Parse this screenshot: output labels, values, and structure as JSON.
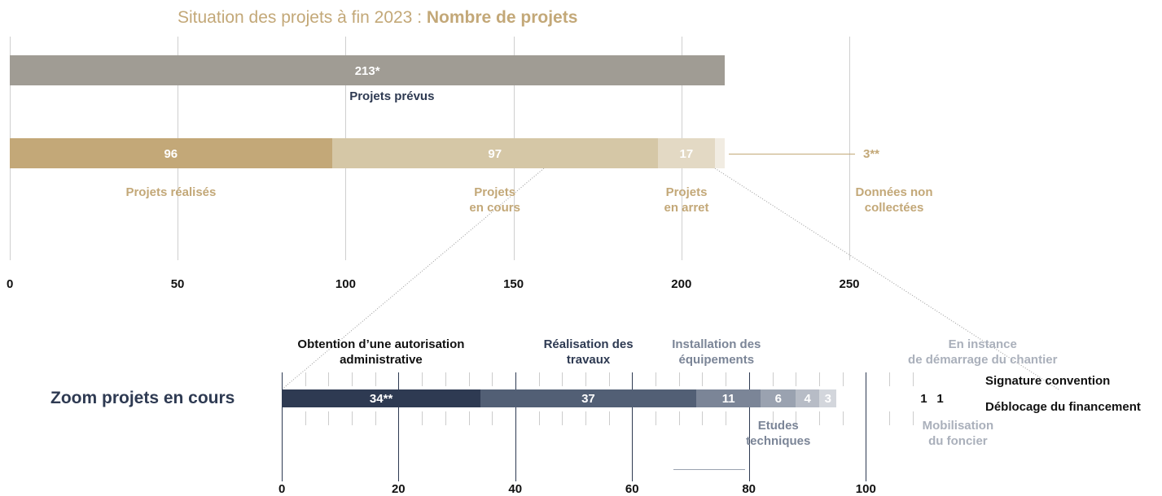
{
  "chart_data": [
    {
      "type": "stacked_bar",
      "title": "Situation des projets à fin 2023 :",
      "title_bold": "Nombre de projets",
      "bars": [
        {
          "segments": [
            {
              "name": "Projets prévus",
              "value": 213,
              "value_label": "213*",
              "color": "#a09c94",
              "label_color": "#2e3a52"
            }
          ]
        },
        {
          "segments": [
            {
              "name": "Projets réalisés",
              "value": 96,
              "color": "#c3a878",
              "label_color": "#c3a878"
            },
            {
              "name": "Projets\nen cours",
              "value": 97,
              "color": "#d5c7a6",
              "label_color": "#c3a878"
            },
            {
              "name": "Projets\nen arret",
              "value": 17,
              "color": "#e3d9c4",
              "label_color": "#c3a878"
            },
            {
              "name": "Données non\ncollectées",
              "value": 3,
              "value_label": "3**",
              "color": "#f1ece2",
              "label_color": "#c3a878"
            }
          ]
        }
      ],
      "xlim": [
        0,
        250
      ],
      "xticks": [
        0,
        50,
        100,
        150,
        200,
        250
      ],
      "grid": true
    },
    {
      "type": "stacked_bar",
      "title": "Zoom projets en cours",
      "bars": [
        {
          "segments": [
            {
              "name": "Obtention d’une autorisation\nadministrative",
              "value": 34,
              "value_label": "34**",
              "color": "#2e3a52",
              "label_color": "#111111"
            },
            {
              "name": "Réalisation des\ntravaux",
              "value": 37,
              "color": "#525f75",
              "label_color": "#2e3a52"
            },
            {
              "name": "Installation des\néquipements",
              "value": 11,
              "color": "#7b8597",
              "label_color": "#7b8597"
            },
            {
              "name": "Etudes\ntechniques",
              "value": 6,
              "color": "#9aa2b0",
              "label_color": "#7b8597"
            },
            {
              "name": "En instance\nde démarrage du chantier",
              "value": 4,
              "color": "#b7bcc6",
              "label_color": "#aab0bb"
            },
            {
              "name": "Mobilisation\ndu foncier",
              "value": 3,
              "color": "#d3d6dc",
              "label_color": "#aab0bb"
            },
            {
              "name": "Signature convention",
              "value": 1,
              "color": "#ffffff",
              "label_color": "#111111"
            },
            {
              "name": "Déblocage du financement",
              "value": 1,
              "color": "#ffffff",
              "label_color": "#111111"
            }
          ]
        }
      ],
      "xlim": [
        0,
        110
      ],
      "xticks": [
        0,
        20,
        40,
        60,
        80,
        100
      ],
      "minor_xticks": [
        4,
        8,
        12,
        16,
        24,
        28,
        32,
        36,
        44,
        48,
        52,
        56,
        64,
        68,
        72,
        76,
        84,
        88,
        92,
        96,
        104,
        108
      ],
      "grid": true
    }
  ]
}
